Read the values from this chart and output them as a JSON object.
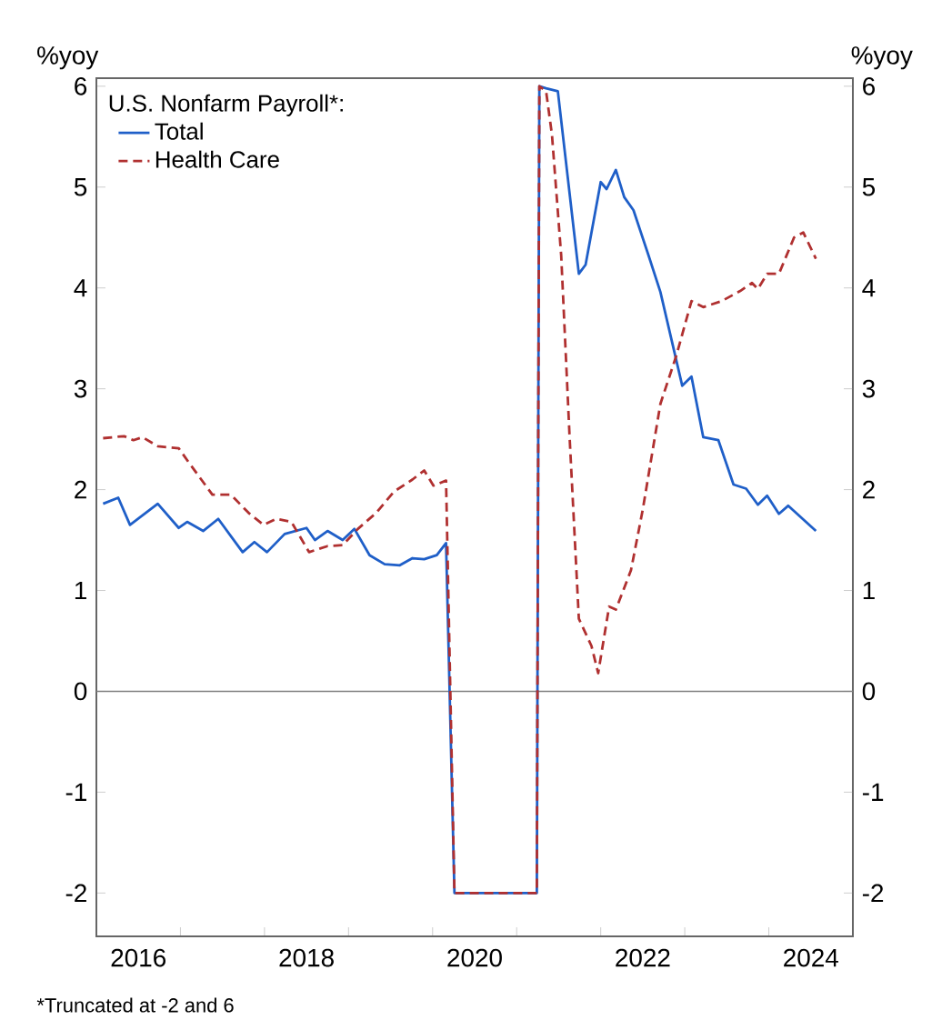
{
  "chart_data": {
    "type": "line",
    "ylabel": "%yoy",
    "y2label": "%yoy",
    "legend_title": "U.S. Nonfarm Payroll*:",
    "legend": "top left",
    "annotations": [
      "*Truncated at -2 and 6"
    ],
    "xlim": [
      2016,
      2025
    ],
    "xticks": [
      {
        "value": 2016.5,
        "label": "2016"
      },
      {
        "value": 2017,
        "label": null
      },
      {
        "value": 2018,
        "label": null
      },
      {
        "value": 2018.5,
        "label": "2018"
      },
      {
        "value": 2019,
        "label": null
      },
      {
        "value": 2020,
        "label": null
      },
      {
        "value": 2020.5,
        "label": "2020"
      },
      {
        "value": 2021,
        "label": null
      },
      {
        "value": 2022,
        "label": null
      },
      {
        "value": 2022.5,
        "label": "2022"
      },
      {
        "value": 2023,
        "label": null
      },
      {
        "value": 2024,
        "label": null
      },
      {
        "value": 2024.5,
        "label": "2024"
      }
    ],
    "ylim": [
      -2.43,
      6.08
    ],
    "yticks": [
      -2,
      -1,
      0,
      1,
      2,
      3,
      4,
      5,
      6
    ],
    "y2lim": [
      -2.43,
      6.08
    ],
    "y2ticks": [
      -2,
      -1,
      0,
      1,
      2,
      3,
      4,
      5,
      6
    ],
    "ref_lines": [
      {
        "axis": "y",
        "value": 0,
        "label": null,
        "color": "#808080"
      }
    ],
    "grid": false,
    "series": [
      {
        "name": "Total",
        "color": "#1f5fc8",
        "line_style": "solid",
        "x": [
          2016.08,
          2016.26,
          2016.4,
          2016.73,
          2016.98,
          2017.08,
          2017.27,
          2017.45,
          2017.74,
          2017.88,
          2018.03,
          2018.24,
          2018.5,
          2018.6,
          2018.75,
          2018.93,
          2019.07,
          2019.25,
          2019.43,
          2019.61,
          2019.76,
          2019.9,
          2020.05,
          2020.16,
          2020.26,
          2021.24,
          2021.27,
          2021.35,
          2021.49,
          2021.74,
          2021.82,
          2022.0,
          2022.07,
          2022.18,
          2022.28,
          2022.39,
          2022.57,
          2022.71,
          2022.97,
          2023.08,
          2023.22,
          2023.4,
          2023.58,
          2023.73,
          2023.87,
          2023.98,
          2024.12,
          2024.23,
          2024.56
        ],
        "values": [
          1.86,
          1.92,
          1.65,
          1.86,
          1.62,
          1.68,
          1.59,
          1.71,
          1.38,
          1.48,
          1.38,
          1.56,
          1.62,
          1.5,
          1.59,
          1.5,
          1.61,
          1.35,
          1.26,
          1.25,
          1.32,
          1.31,
          1.35,
          1.47,
          -2,
          -2,
          6,
          5.98,
          5.95,
          4.14,
          4.23,
          5.05,
          4.98,
          5.17,
          4.9,
          4.77,
          4.32,
          3.96,
          3.03,
          3.12,
          2.52,
          2.49,
          2.05,
          2.01,
          1.85,
          1.94,
          1.76,
          1.84,
          1.59
        ]
      },
      {
        "name": "Health Care",
        "color": "#b03030",
        "line_style": "dashed",
        "x": [
          2016.08,
          2016.33,
          2016.44,
          2016.55,
          2016.73,
          2016.98,
          2017.09,
          2017.38,
          2017.6,
          2017.81,
          2017.99,
          2018.14,
          2018.32,
          2018.53,
          2018.75,
          2018.93,
          2019.11,
          2019.33,
          2019.54,
          2019.76,
          2019.9,
          2020.01,
          2020.16,
          2020.26,
          2021.24,
          2021.27,
          2021.35,
          2021.42,
          2021.53,
          2021.63,
          2021.74,
          2021.89,
          2021.97,
          2022.1,
          2022.18,
          2022.36,
          2022.5,
          2022.71,
          2022.9,
          2023.08,
          2023.22,
          2023.44,
          2023.66,
          2023.8,
          2023.87,
          2023.98,
          2024.12,
          2024.3,
          2024.41,
          2024.56
        ],
        "values": [
          2.51,
          2.53,
          2.49,
          2.52,
          2.43,
          2.41,
          2.28,
          1.95,
          1.95,
          1.77,
          1.65,
          1.71,
          1.68,
          1.38,
          1.44,
          1.45,
          1.61,
          1.77,
          1.98,
          2.1,
          2.19,
          2.04,
          2.09,
          -2,
          -2,
          6,
          5.95,
          5.52,
          4.32,
          2.52,
          0.72,
          0.45,
          0.18,
          0.84,
          0.81,
          1.2,
          1.8,
          2.85,
          3.33,
          3.87,
          3.81,
          3.87,
          3.97,
          4.05,
          3.99,
          4.14,
          4.14,
          4.5,
          4.55,
          4.29
        ]
      }
    ]
  }
}
